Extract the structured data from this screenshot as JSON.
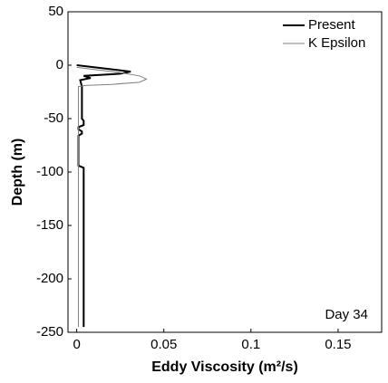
{
  "chart_data": {
    "type": "line",
    "xlabel": "Eddy Viscosity (m²/s)",
    "ylabel": "Depth (m)",
    "annotation": "Day 34",
    "xlim": [
      -0.005,
      0.175
    ],
    "ylim": [
      -250,
      50
    ],
    "xticks": [
      0,
      0.05,
      0.1,
      0.15
    ],
    "yticks": [
      -250,
      -200,
      -150,
      -100,
      -50,
      0,
      50
    ],
    "grid": false,
    "legend": "upper-right",
    "series": [
      {
        "name": "Present",
        "color": "#000000",
        "width": 2,
        "x": [
          0,
          0.031,
          0.025,
          0.004,
          0.008,
          0.002,
          0.003,
          0.003,
          0.004,
          0.004,
          0.001,
          0.001,
          0.003,
          0.003,
          0.001,
          0.001,
          0.004,
          0.004
        ],
        "y": [
          0,
          -6,
          -8,
          -10,
          -12,
          -14,
          -20,
          -50,
          -52,
          -56,
          -58,
          -60,
          -62,
          -64,
          -66,
          -94,
          -96,
          -245
        ]
      },
      {
        "name": "K Epsilon",
        "color": "#808080",
        "width": 1,
        "x": [
          0,
          0.01,
          0.025,
          0.036,
          0.04,
          0.036,
          0.02,
          0.005,
          0.001,
          0.001
        ],
        "y": [
          -2,
          -4,
          -7,
          -10,
          -13,
          -16,
          -18,
          -19,
          -20,
          -245
        ]
      }
    ]
  }
}
